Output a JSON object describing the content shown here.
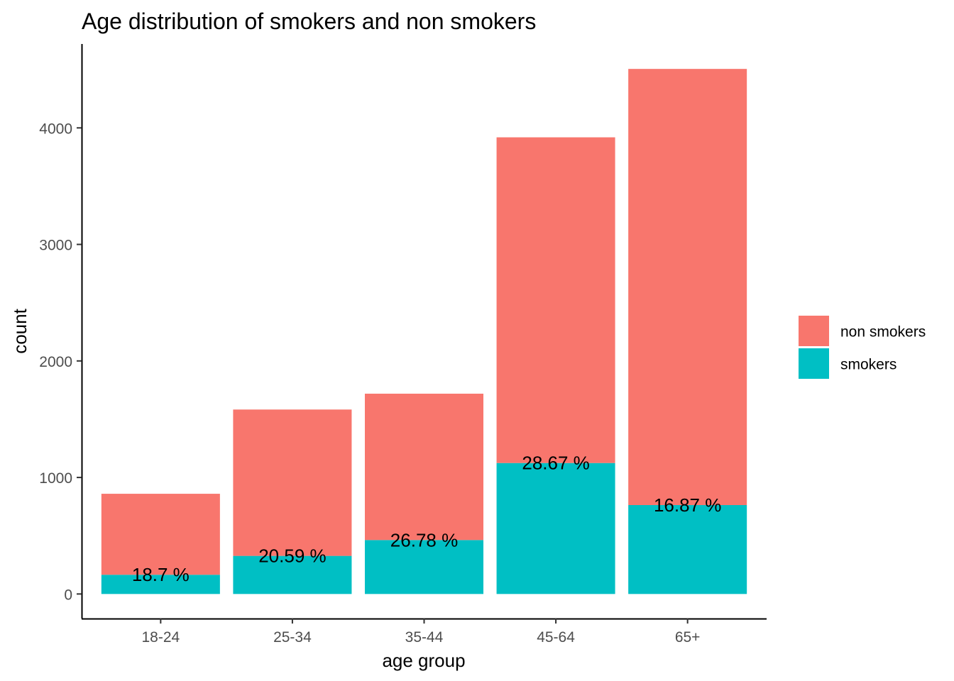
{
  "chart_data": {
    "type": "bar",
    "stacked": true,
    "title": "Age distribution of smokers and non smokers",
    "xlabel": "age group",
    "ylabel": "count",
    "categories": [
      "18-24",
      "25-34",
      "35-44",
      "45-64",
      "65+"
    ],
    "series": [
      {
        "name": "non smokers",
        "color": "#F8766D",
        "values": [
          695,
          1256,
          1256,
          2795,
          3743
        ]
      },
      {
        "name": "smokers",
        "color": "#00BFC4",
        "values": [
          165,
          327,
          463,
          1124,
          763
        ]
      }
    ],
    "data_labels": [
      "18.7 %",
      "20.59 %",
      "26.78 %",
      "28.67 %",
      "16.87 %"
    ],
    "ylim": [
      -211,
      4720
    ],
    "yticks": [
      0,
      1000,
      2000,
      3000,
      4000
    ],
    "grid": false,
    "legend_position": "right"
  }
}
